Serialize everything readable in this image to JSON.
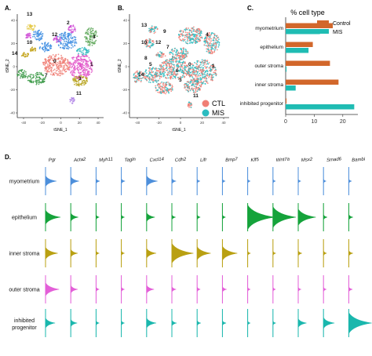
{
  "panels": {
    "a": {
      "letter": "A.",
      "xlabel": "tSNE_1",
      "ylabel": "tSNE_2",
      "x_ticks": [
        "-40",
        "-20",
        "0",
        "20",
        "40"
      ],
      "y_ticks": [
        "40",
        "20",
        "0",
        "-20",
        "-40"
      ],
      "cluster_labels": [
        "13",
        "12",
        "10",
        "4",
        "14",
        "0",
        "1",
        "2",
        "3",
        "7",
        "11"
      ],
      "cluster_colors": [
        "#e5ca4b",
        "#cf4fd6",
        "#3f8ee2",
        "#5fa85a",
        "#c3a31a",
        "#f07f75",
        "#e255c9",
        "#33b9c0",
        "#b7a31d",
        "#3e9b4a",
        "#b084e6"
      ]
    },
    "b": {
      "letter": "B.",
      "xlabel": "tSNE_1",
      "ylabel": "tSNE_2",
      "x_ticks": [
        "-40",
        "-20",
        "0",
        "20",
        "40"
      ],
      "y_ticks": [
        "40",
        "20",
        "0",
        "-20",
        "-40"
      ],
      "cluster_labels": [
        "13",
        "9",
        "10",
        "12",
        "4",
        "8",
        "5",
        "14",
        "0",
        "1",
        "3",
        "6",
        "7",
        "11"
      ],
      "legend": [
        {
          "label": "CTL",
          "color": "#f07f75"
        },
        {
          "label": "MIS",
          "color": "#2bbcc0"
        }
      ]
    }
  },
  "chart_data": [
    {
      "panel": "C.",
      "type": "bar",
      "orientation": "horizontal",
      "title": "% cell type",
      "categories": [
        "myometrium",
        "epithelium",
        "outer stroma",
        "inner stroma",
        "inhibited progenitor"
      ],
      "series": [
        {
          "name": "Control",
          "color": "#d2672b",
          "values": [
            16.5,
            9.5,
            15.5,
            18.5,
            0.3
          ]
        },
        {
          "name": "MIS",
          "color": "#1fbcb3",
          "values": [
            12.0,
            8.0,
            0.3,
            3.5,
            24.0
          ]
        }
      ],
      "xlim": [
        0,
        25
      ],
      "x_ticks": [
        0,
        10,
        20
      ],
      "legend_position": "top-right",
      "grid": false
    },
    {
      "panel": "D.",
      "type": "violin",
      "genes": [
        "Pgr",
        "Acta2",
        "Myh11",
        "Tagln",
        "Cxcl14",
        "Cdh2",
        "Lifr",
        "Bmp7",
        "Klf5",
        "Wnt7a",
        "Msx2",
        "Smad6",
        "Bambi"
      ],
      "cell_types": [
        {
          "name": "myometrium",
          "color": "#4d8fdb",
          "levels": [
            0.35,
            0.25,
            0.08,
            0.08,
            0.35,
            0.1,
            0.05,
            0.05,
            0.04,
            0.04,
            0.04,
            0.04,
            0.05
          ]
        },
        {
          "name": "epithelium",
          "color": "#15a33b",
          "levels": [
            0.5,
            0.22,
            0.06,
            0.06,
            0.25,
            0.08,
            0.06,
            0.06,
            0.95,
            0.8,
            0.6,
            0.08,
            0.1
          ]
        },
        {
          "name": "inner stroma",
          "color": "#b9a012",
          "levels": [
            0.4,
            0.2,
            0.06,
            0.06,
            0.3,
            0.75,
            0.45,
            0.5,
            0.05,
            0.05,
            0.08,
            0.06,
            0.1
          ]
        },
        {
          "name": "outer stroma",
          "color": "#e35fd8",
          "levels": [
            0.45,
            0.2,
            0.06,
            0.06,
            0.22,
            0.1,
            0.06,
            0.1,
            0.04,
            0.04,
            0.05,
            0.05,
            0.08
          ]
        },
        {
          "name": "inhibited progenitor",
          "color": "#1ab7ad",
          "levels": [
            0.3,
            0.18,
            0.06,
            0.06,
            0.3,
            0.12,
            0.08,
            0.08,
            0.04,
            0.05,
            0.25,
            0.35,
            0.8
          ]
        }
      ]
    }
  ]
}
